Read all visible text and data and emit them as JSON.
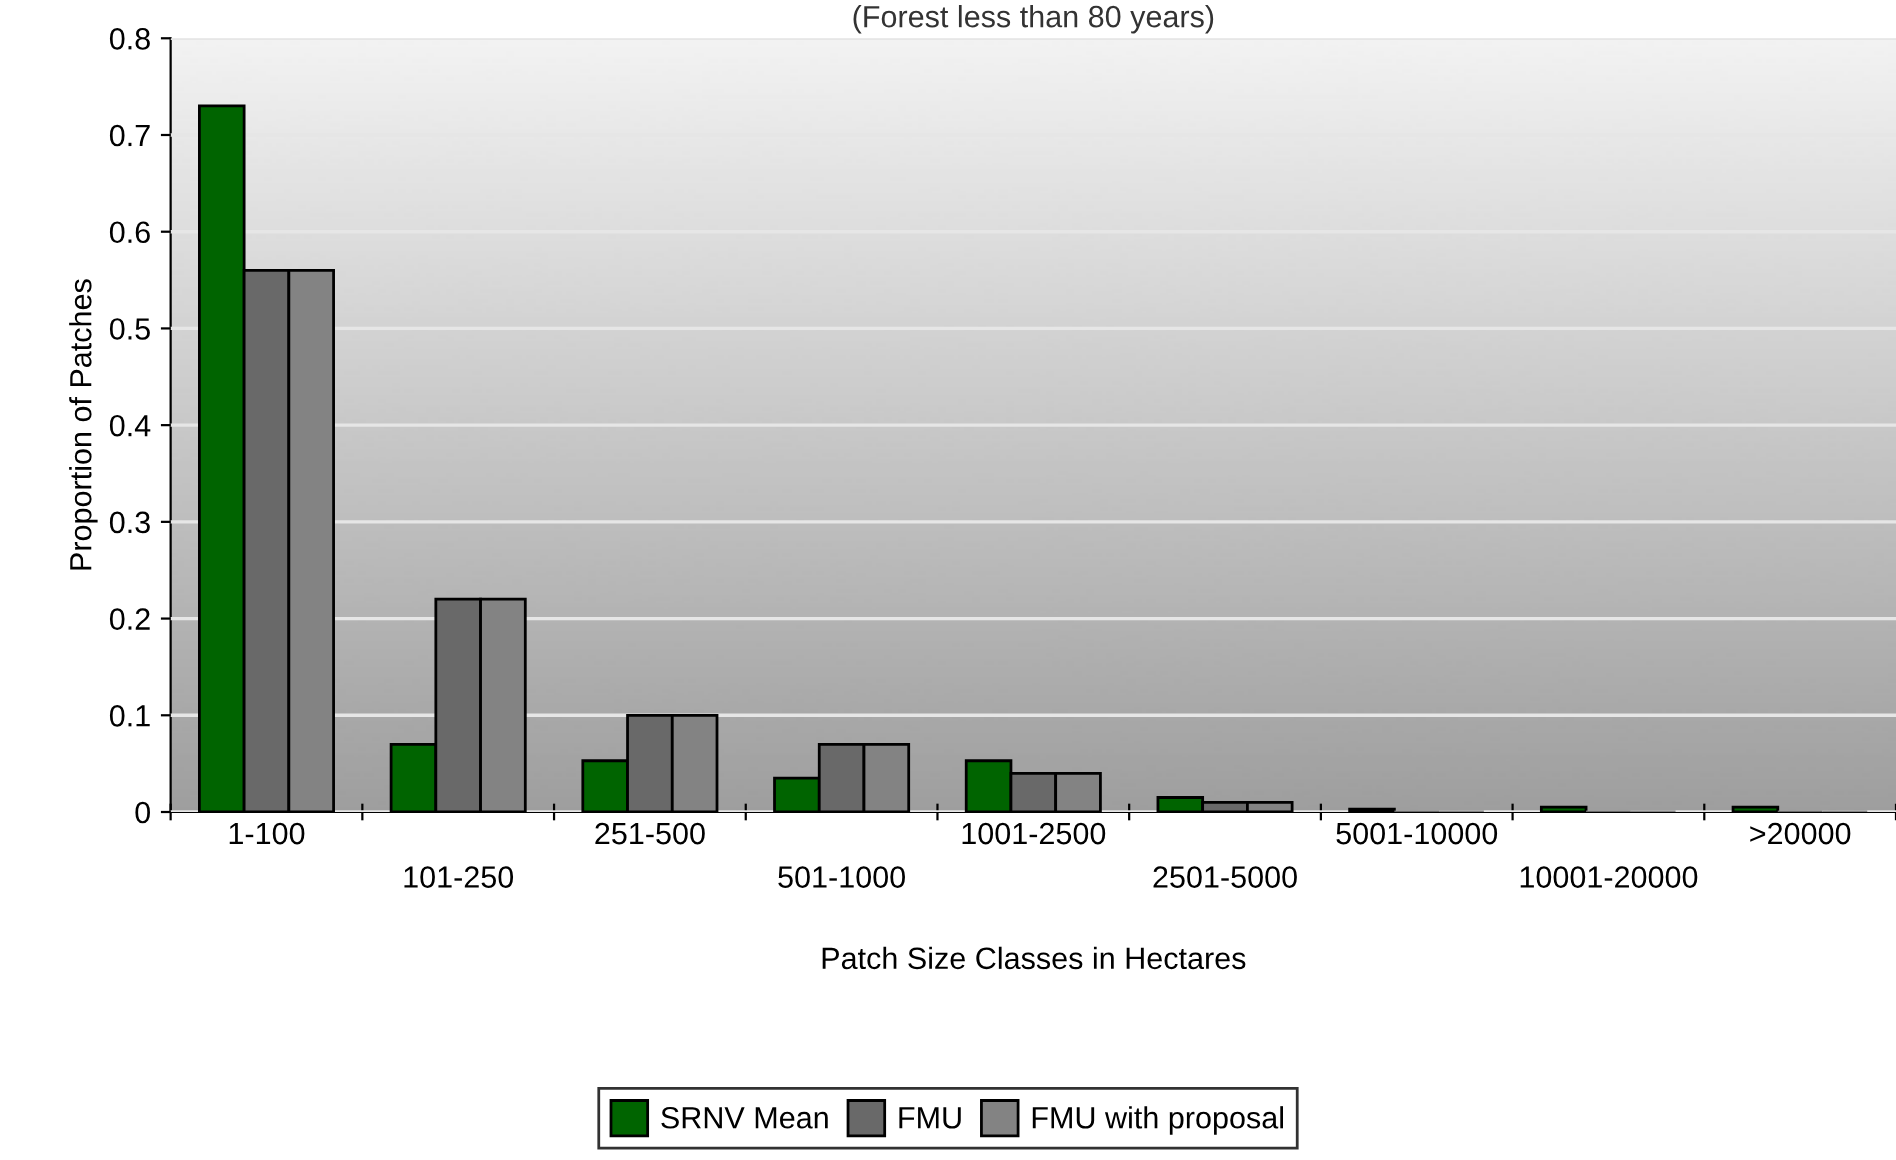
{
  "chart_data": {
    "type": "bar",
    "title": "(Forest less than 80 years)",
    "xlabel": "Patch Size Classes in Hectares",
    "ylabel": "Proportion of Patches",
    "categories": [
      "1-100",
      "101-250",
      "251-500",
      "501-1000",
      "1001-2500",
      "2501-5000",
      "5001-10000",
      "10001-20000",
      ">20000"
    ],
    "series": [
      {
        "name": "SRNV Mean",
        "color": "#006400",
        "values": [
          0.73,
          0.07,
          0.053,
          0.035,
          0.053,
          0.015,
          0.003,
          0.005,
          0.005
        ]
      },
      {
        "name": "FMU",
        "color": "#696969",
        "values": [
          0.56,
          0.22,
          0.1,
          0.07,
          0.04,
          0.01,
          0,
          0,
          0
        ]
      },
      {
        "name": "FMU with proposal",
        "color": "#838383",
        "values": [
          0.56,
          0.22,
          0.1,
          0.07,
          0.04,
          0.01,
          0,
          0,
          0
        ]
      }
    ],
    "ylim": [
      0,
      0.8
    ],
    "yticks": [
      0,
      0.1,
      0.2,
      0.3,
      0.4,
      0.5,
      0.6,
      0.7,
      0.8
    ],
    "grid": "y",
    "legend": "bottom"
  }
}
